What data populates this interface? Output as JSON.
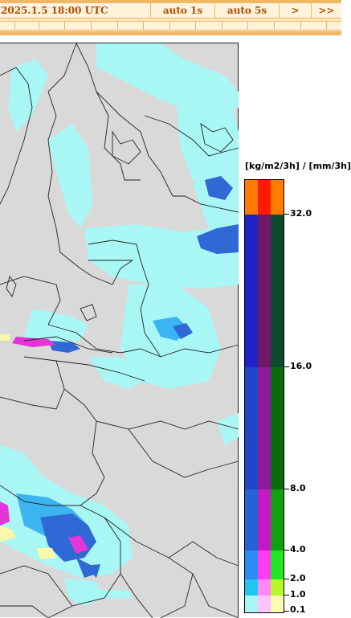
{
  "nav": {
    "date": "2025.1.5 18:00 UTC",
    "auto1": "auto 1s",
    "auto5": "auto 5s",
    "next": ">",
    "last": ">>"
  },
  "legend": {
    "units": "[kg/m2/3h] / [mm/3h]",
    "labels": [
      "32.0",
      "16.0",
      "8.0",
      "4.0",
      "2.0",
      "1.0",
      "0.1"
    ]
  },
  "colors": {
    "map_background": "#d9d9d9",
    "light_precip": "#a8f7f4",
    "heavy_precip": "#2e69d6",
    "nav_accent": "#b24b00"
  }
}
